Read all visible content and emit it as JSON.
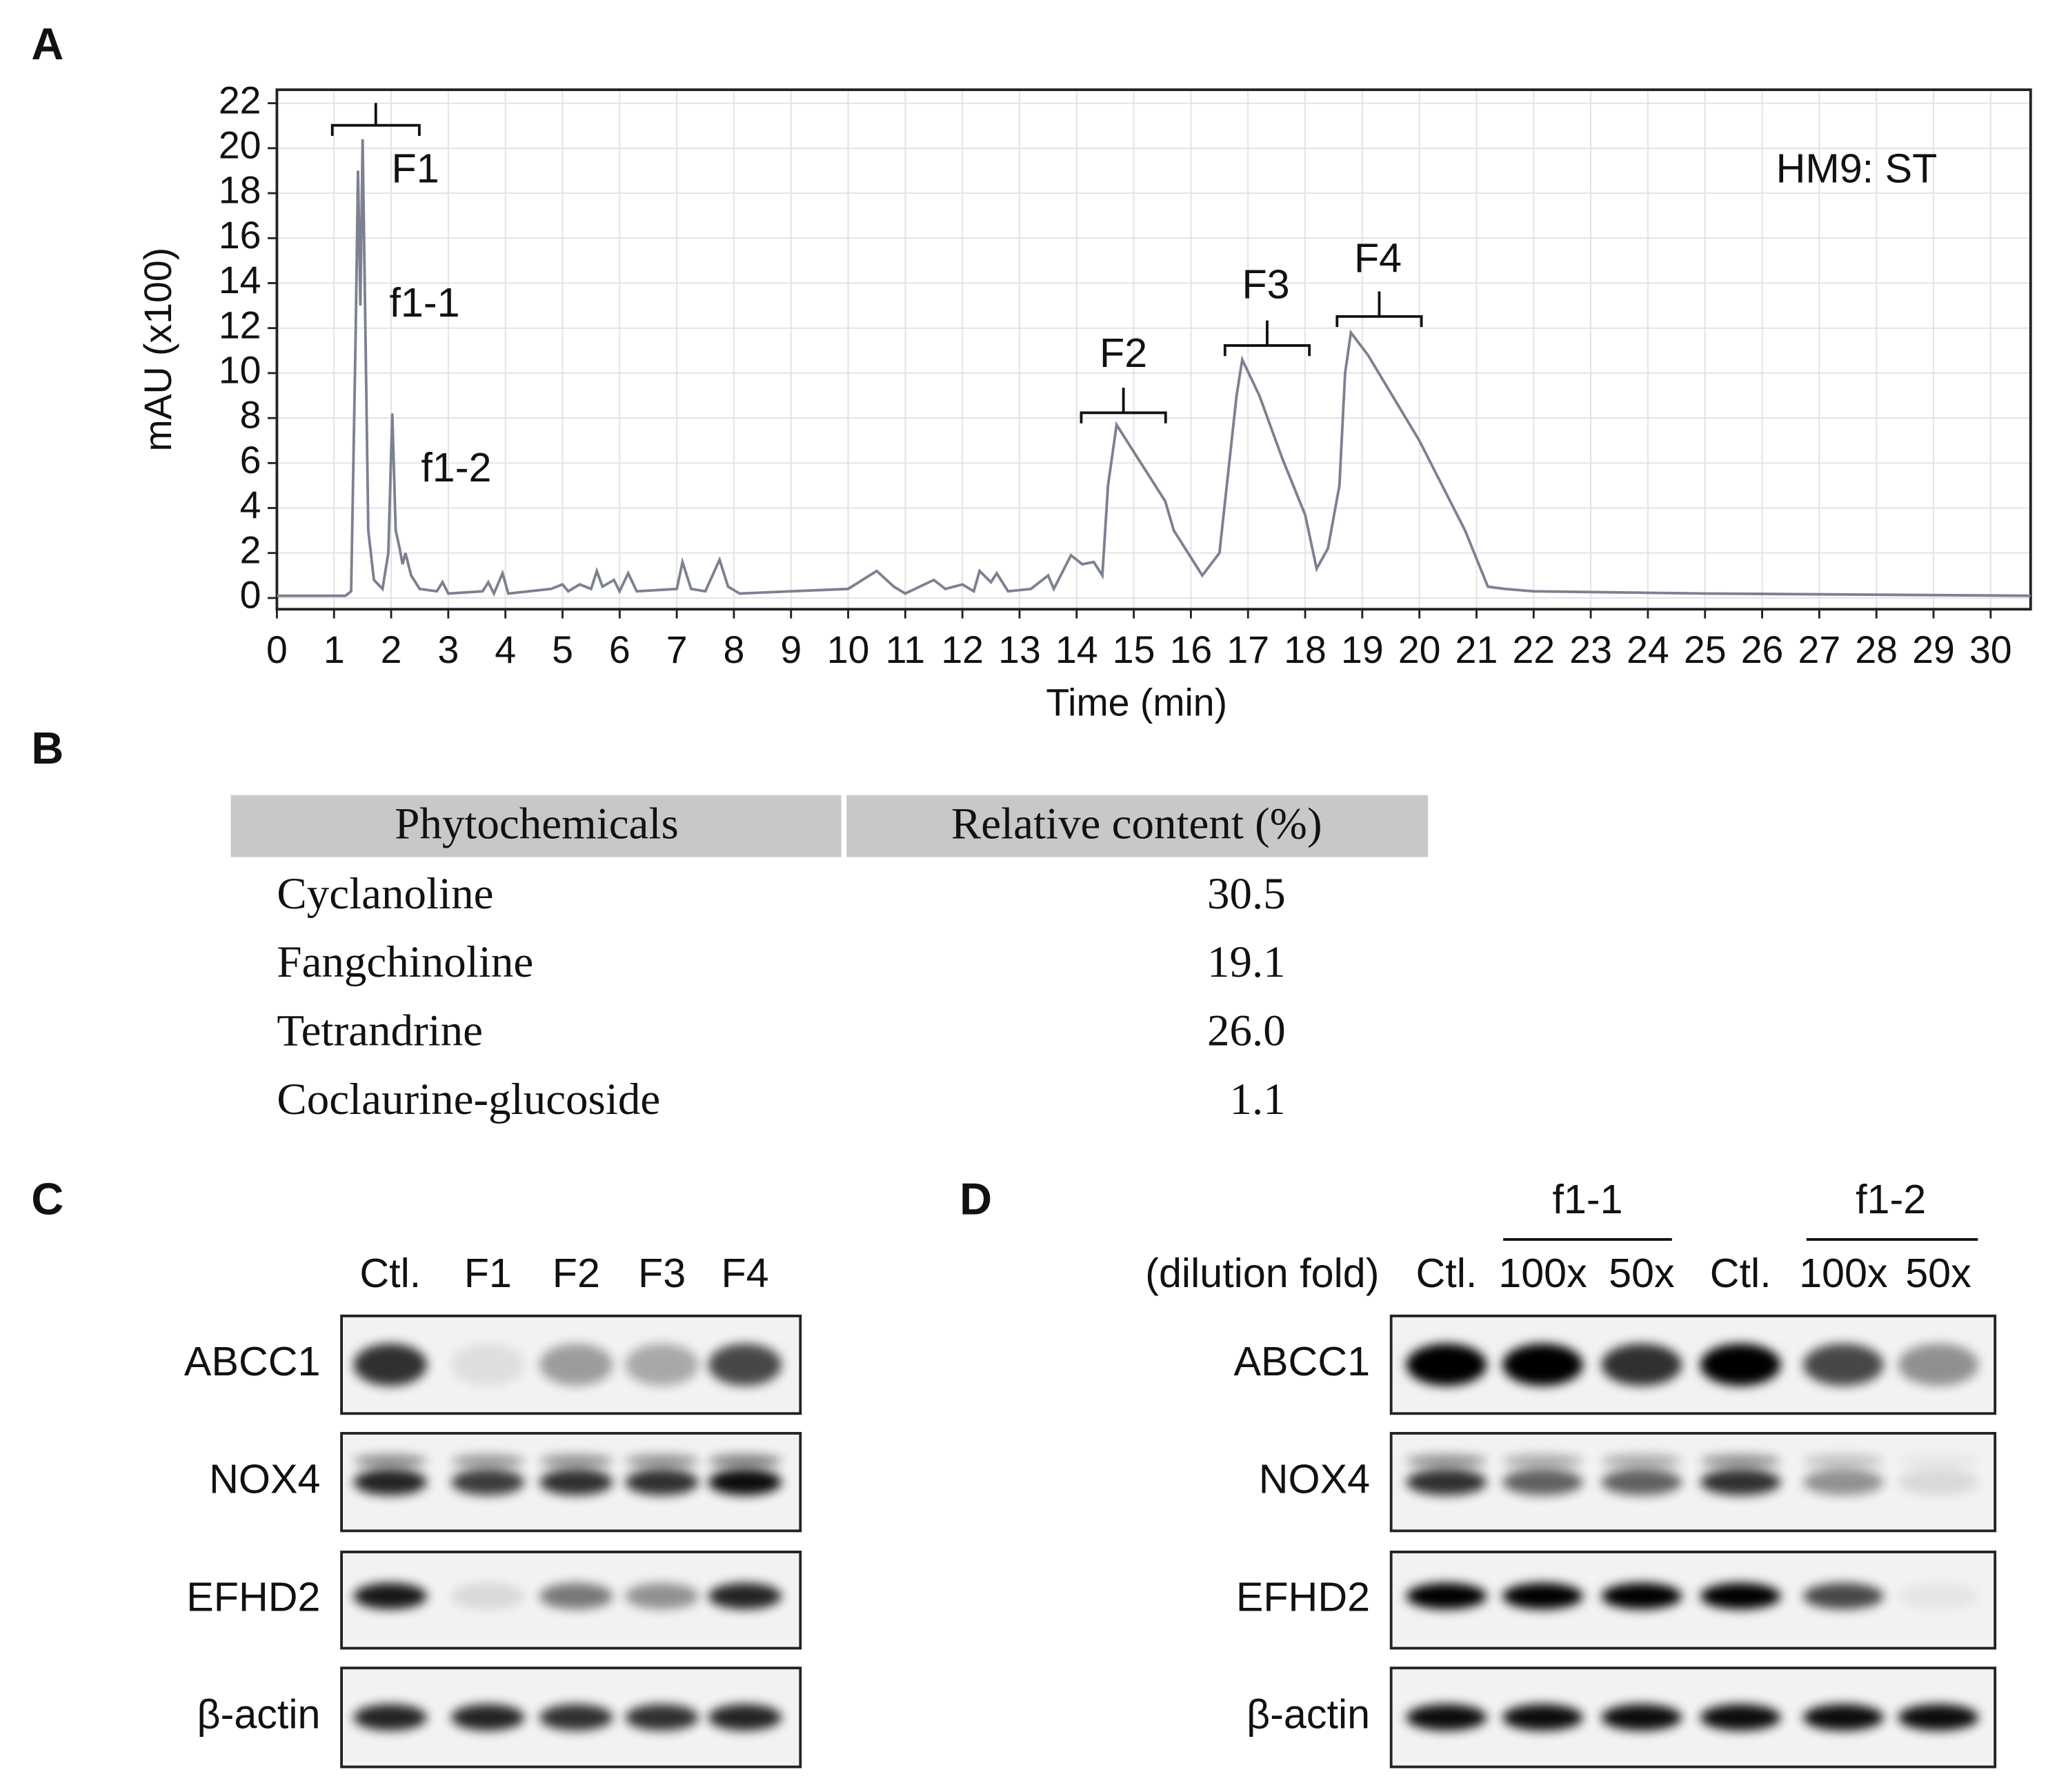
{
  "panel_labels": [
    "A",
    "B",
    "C",
    "D"
  ],
  "chart_data": {
    "type": "line",
    "x_label": "Time (min)",
    "y_label": "mAU (x100)",
    "annotations": [
      "F1",
      "f1-1",
      "f1-2",
      "F2",
      "F3",
      "F4",
      "HM9: ST"
    ],
    "x": [
      0,
      1.2,
      1.3,
      1.38,
      1.42,
      1.46,
      1.5,
      1.55,
      1.6,
      1.7,
      1.85,
      1.95,
      2.02,
      2.08,
      2.15,
      2.2,
      2.25,
      2.35,
      2.5,
      2.8,
      2.9,
      3.0,
      3.6,
      3.7,
      3.8,
      3.95,
      4.05,
      4.8,
      5.0,
      5.1,
      5.3,
      5.5,
      5.6,
      5.7,
      5.9,
      6.0,
      6.15,
      6.3,
      7.0,
      7.1,
      7.25,
      7.5,
      7.75,
      7.9,
      8.1,
      9.0,
      10.0,
      10.5,
      10.8,
      11.0,
      11.5,
      11.7,
      12.0,
      12.2,
      12.3,
      12.5,
      12.6,
      12.8,
      13.2,
      13.5,
      13.6,
      13.9,
      14.1,
      14.3,
      14.45,
      14.55,
      14.7,
      15.0,
      15.4,
      15.55,
      15.7,
      16.0,
      16.2,
      16.5,
      16.8,
      16.9,
      17.2,
      17.6,
      18.0,
      18.2,
      18.4,
      18.6,
      18.7,
      18.8,
      19.1,
      20.0,
      20.8,
      21.2,
      21.5,
      22,
      25,
      30.7
    ],
    "series": [
      {
        "color": "#7b8190",
        "values": [
          0.1,
          0.1,
          0.3,
          12,
          19,
          13,
          20.4,
          12,
          3,
          0.8,
          0.4,
          2,
          8.2,
          3,
          2.2,
          1.5,
          2,
          1,
          0.4,
          0.3,
          0.7,
          0.2,
          0.3,
          0.7,
          0.2,
          1.1,
          0.2,
          0.4,
          0.6,
          0.3,
          0.6,
          0.4,
          1.2,
          0.5,
          0.8,
          0.3,
          1.1,
          0.3,
          0.4,
          1.6,
          0.4,
          0.3,
          1.7,
          0.5,
          0.2,
          0.3,
          0.4,
          1.2,
          0.5,
          0.2,
          0.8,
          0.4,
          0.6,
          0.3,
          1.2,
          0.7,
          1.1,
          0.3,
          0.4,
          1.0,
          0.4,
          1.9,
          1.5,
          1.6,
          1.0,
          5,
          7.7,
          6.5,
          4.9,
          4.3,
          3.0,
          1.8,
          1.0,
          2.0,
          9,
          10.6,
          9,
          6.2,
          3.7,
          1.3,
          2.2,
          5,
          10,
          11.8,
          10.8,
          7,
          3,
          0.5,
          0.4,
          0.3,
          0.2,
          0.1
        ]
      }
    ],
    "xlim": [
      0,
      30.7
    ],
    "ylim": [
      -0.5,
      22.6
    ],
    "xticks": [
      0,
      1,
      2,
      3,
      4,
      5,
      6,
      7,
      8,
      9,
      10,
      11,
      12,
      13,
      14,
      15,
      16,
      17,
      18,
      19,
      20,
      21,
      22,
      23,
      24,
      25,
      26,
      27,
      28,
      29,
      30
    ],
    "yticks": [
      0,
      2,
      4,
      6,
      8,
      10,
      12,
      14,
      16,
      18,
      20,
      22
    ],
    "grid": true
  },
  "table": {
    "header": [
      "Phytochemicals",
      "Relative content (%)"
    ],
    "rows": [
      [
        "Cyclanoline",
        "30.5"
      ],
      [
        "Fangchinoline",
        "19.1"
      ],
      [
        "Tetrandrine",
        "26.0"
      ],
      [
        "Coclaurine-glucoside",
        "1.1"
      ]
    ]
  },
  "panel_c": {
    "lanes": [
      "Ctl.",
      "F1",
      "F2",
      "F3",
      "F4"
    ],
    "rows": [
      "ABCC1",
      "NOX4",
      "EFHD2",
      "β-actin"
    ]
  },
  "panel_d": {
    "groups": [
      "f1-1",
      "f1-2"
    ],
    "label": "(dilution fold)",
    "lanes": [
      "Ctl.",
      "100x",
      "50x",
      "Ctl.",
      "100x",
      "50x"
    ],
    "rows": [
      "ABCC1",
      "NOX4",
      "EFHD2",
      "β-actin"
    ]
  }
}
